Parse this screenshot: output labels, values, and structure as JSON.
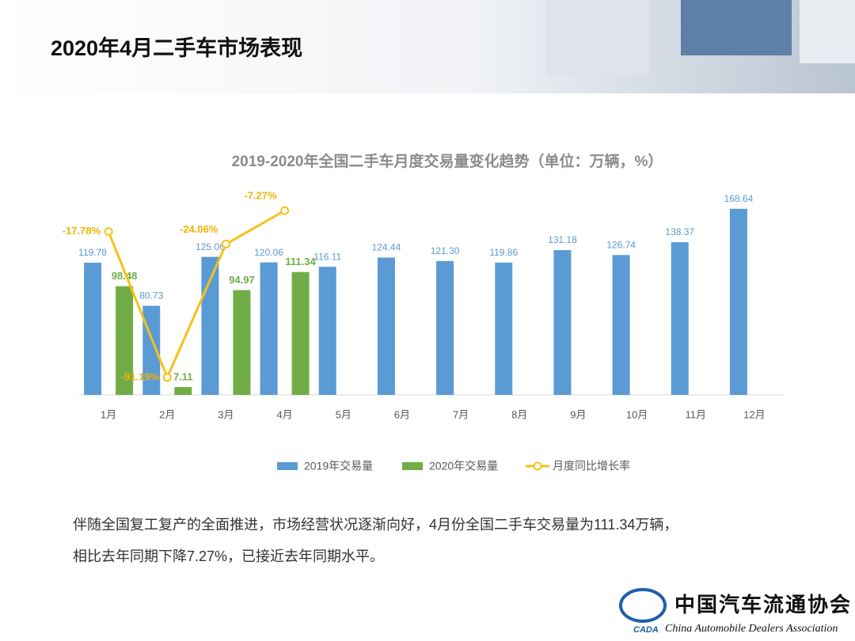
{
  "header": {
    "title": "2020年4月二手车市场表现"
  },
  "chart_data": {
    "type": "bar-line",
    "title": "2019-2020年全国二手车月度交易量变化趋势（单位：万辆，%）",
    "categories": [
      "1月",
      "2月",
      "3月",
      "4月",
      "5月",
      "6月",
      "7月",
      "8月",
      "9月",
      "10月",
      "11月",
      "12月"
    ],
    "ylim": [
      0,
      180
    ],
    "y2lim": [
      -100,
      0
    ],
    "series": [
      {
        "name": "2019年交易量",
        "type": "bar",
        "color": "#5b9bd5",
        "values": [
          119.78,
          80.73,
          125.06,
          120.06,
          116.11,
          124.44,
          121.3,
          119.86,
          131.18,
          126.74,
          138.37,
          168.64
        ],
        "value_labels": [
          "119.78",
          "80.73",
          "125.06",
          "120.06",
          "116.11",
          "124.44",
          "121.30",
          "119.86",
          "131.18",
          "126.74",
          "138.37",
          "168.64"
        ]
      },
      {
        "name": "2020年交易量",
        "type": "bar",
        "color": "#70ad47",
        "values": [
          98.48,
          7.11,
          94.97,
          111.34,
          null,
          null,
          null,
          null,
          null,
          null,
          null,
          null
        ],
        "value_labels": [
          "98.48",
          "7.11",
          "94.97",
          "111.34",
          null,
          null,
          null,
          null,
          null,
          null,
          null,
          null
        ]
      },
      {
        "name": "月度同比增长率",
        "type": "line",
        "axis": "y2",
        "color": "#f5c218",
        "values": [
          -17.78,
          -91.19,
          -24.06,
          -7.27,
          null,
          null,
          null,
          null,
          null,
          null,
          null,
          null
        ],
        "value_labels": [
          "-17.78%",
          "-91.19%",
          "-24.06%",
          "-7.27%",
          null,
          null,
          null,
          null,
          null,
          null,
          null,
          null
        ]
      }
    ]
  },
  "body": {
    "lines": [
      "伴随全国复工复产的全面推进，市场经营状况逐渐向好，4月份全国二手车交易量为111.34万辆，",
      "相比去年同期下降7.27%，已接近去年同期水平。"
    ]
  },
  "logo": {
    "abbr": "CADA",
    "name": "中国汽车流通协会",
    "english": "China Automobile Dealers Association"
  }
}
